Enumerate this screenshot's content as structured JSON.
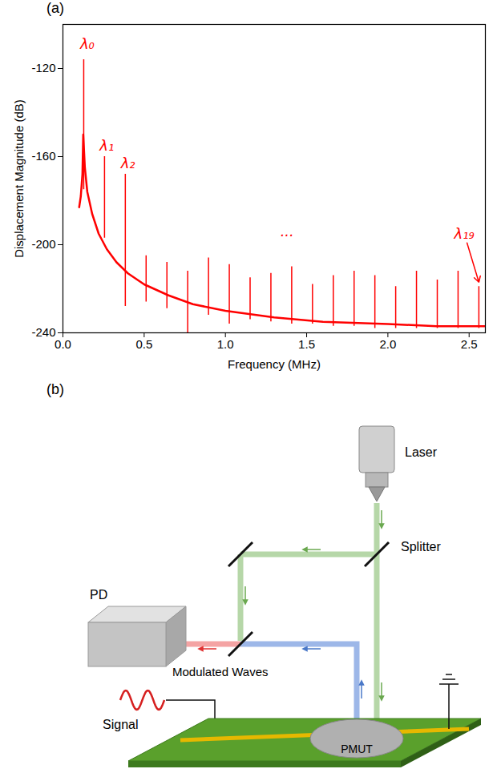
{
  "chart_data": {
    "type": "line",
    "panel_label": "(a)",
    "color": "#ff0000",
    "x_label": "Frequency (MHz)",
    "y_label": "Displacement Magnitude (dB)",
    "xlim": [
      0,
      2.6
    ],
    "xticks": [
      {
        "value": 0,
        "label": "0.0"
      },
      0.5,
      {
        "value": 1,
        "label": "1.0"
      },
      1.5,
      {
        "value": 2,
        "label": "2.0"
      },
      2.5
    ],
    "ylim": [
      -240,
      -100
    ],
    "yticks": [
      -120,
      -160,
      -200,
      -240
    ],
    "peaks": {
      "x": [
        0.128,
        0.256,
        0.384,
        0.512,
        0.64,
        0.768,
        0.896,
        1.024,
        1.152,
        1.28,
        1.408,
        1.536,
        1.664,
        1.792,
        1.92,
        2.048,
        2.176,
        2.304,
        2.432,
        2.56
      ],
      "values": [
        -116,
        -160,
        -168,
        -205,
        -208,
        -212,
        -206,
        -209,
        -215,
        -213,
        -210,
        -218,
        -214,
        -212,
        -214,
        -219,
        -212,
        -216,
        -212,
        -219
      ],
      "bottoms": [
        -175,
        -197,
        -228,
        -226,
        -229,
        -240,
        -232,
        -236,
        -234,
        -235,
        -236,
        -236,
        -237,
        -237,
        -238,
        -238,
        -238,
        -238,
        -238,
        -238
      ]
    },
    "noise_floor": {
      "x": [
        0.1,
        0.11,
        0.12,
        0.125,
        0.135,
        0.15,
        0.18,
        0.22,
        0.27,
        0.33,
        0.4,
        0.5,
        0.65,
        0.8,
        1.0,
        1.3,
        1.6,
        2.0,
        2.3,
        2.6
      ],
      "values": [
        -183,
        -178,
        -168,
        -150,
        -165,
        -176,
        -186,
        -195,
        -202,
        -208,
        -213,
        -218,
        -223,
        -227,
        -230,
        -233,
        -235,
        -236,
        -237,
        -237
      ]
    },
    "annotations": [
      {
        "text": "λ₀",
        "x": 0.15,
        "y": -109
      },
      {
        "text": "λ₁",
        "x": 0.27,
        "y": -155
      },
      {
        "text": "λ₂",
        "x": 0.4,
        "y": -163
      },
      {
        "text": "...",
        "x": 1.38,
        "y": -194
      },
      {
        "text": "λ₁₉",
        "x": 2.47,
        "y": -195,
        "arrow_to": [
          2.56,
          -217
        ]
      }
    ],
    "grid": false
  },
  "diagram": {
    "panel_label": "(b)",
    "nodes": {
      "laser": "Laser",
      "splitter": "Splitter",
      "pd": "PD",
      "waves": "Modulated Waves",
      "signal": "Signal",
      "pmut": "PMUT"
    }
  }
}
